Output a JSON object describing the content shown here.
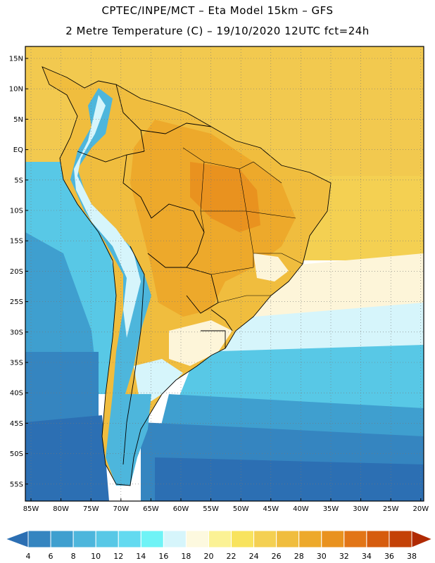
{
  "header": {
    "line1": "CPTEC/INPE/MCT –  Eta Model 15km – GFS",
    "line2": "2 Metre Temperature (C) – 19/10/2020 12UTC fct=24h"
  },
  "axes": {
    "lat_labels": [
      "15N",
      "10N",
      "5N",
      "EQ",
      "5S",
      "10S",
      "15S",
      "20S",
      "25S",
      "30S",
      "35S",
      "40S",
      "45S",
      "50S",
      "55S"
    ],
    "lon_labels": [
      "85W",
      "80W",
      "75W",
      "70W",
      "65W",
      "60W",
      "55W",
      "50W",
      "45W",
      "40W",
      "35W",
      "30W",
      "25W",
      "20W"
    ]
  },
  "colorbar": {
    "labels": [
      "4",
      "6",
      "8",
      "10",
      "12",
      "14",
      "16",
      "18",
      "20",
      "22",
      "24",
      "26",
      "28",
      "30",
      "32",
      "34",
      "36",
      "38"
    ],
    "colors": [
      "#2c6fb3",
      "#3585c0",
      "#3f9fcf",
      "#4db6dc",
      "#58c8e6",
      "#63daf0",
      "#6ff3f6",
      "#d6f5fb",
      "#fdf9df",
      "#fbf295",
      "#f8e35e",
      "#f4d052",
      "#f0bd3e",
      "#eda92b",
      "#e9921f",
      "#e27517",
      "#d65c0e",
      "#c44207",
      "#b02a03"
    ]
  },
  "regions": {
    "ocean_tropics": "#f2c94f",
    "ocean_warm": "#f4d052",
    "ocean_mild": "#fdf5d9",
    "ocean_cool": "#d6f5fb",
    "ocean_cold1": "#58c8e6",
    "ocean_cold2": "#3f9fcf",
    "ocean_cold3": "#3585c0",
    "ocean_cold4": "#2c6fb3",
    "land_hot": "#eda92b",
    "land_hotter": "#e9921f",
    "land_warm": "#f0bd3e",
    "andes_cold": "#4db6dc",
    "andes_snow": "#d6f5fb"
  }
}
